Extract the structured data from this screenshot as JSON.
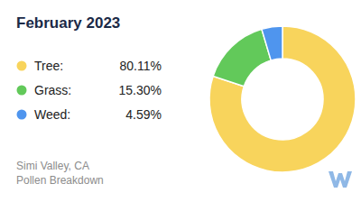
{
  "chart_data": {
    "type": "donut",
    "title": "February 2023",
    "categories": [
      "Tree:",
      "Grass:",
      "Weed:"
    ],
    "values": [
      80.11,
      15.3,
      4.59
    ],
    "value_labels": [
      "80.11%",
      "15.30%",
      "4.59%"
    ],
    "colors": [
      "#f8d45c",
      "#62c95a",
      "#4f95ee"
    ],
    "legend": "left",
    "annotations": [
      "Simi Valley, CA",
      "Pollen Breakdown"
    ]
  }
}
